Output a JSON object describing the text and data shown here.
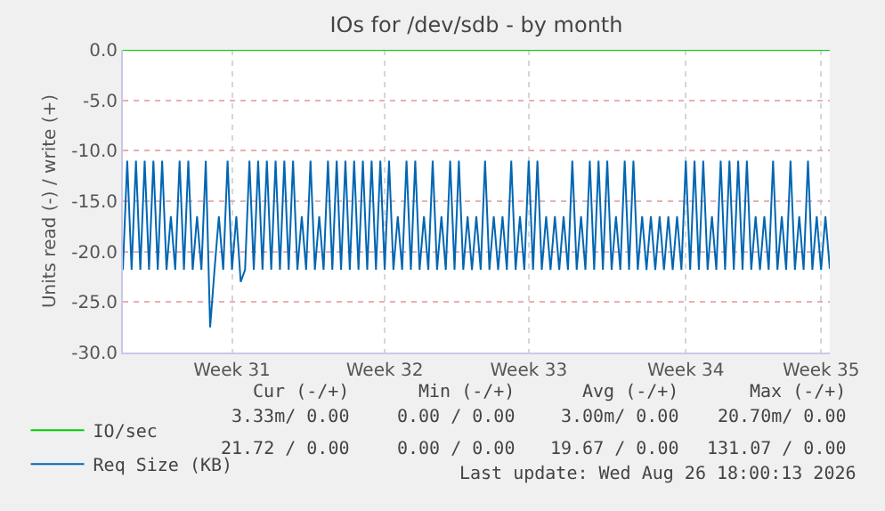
{
  "chart_data": {
    "type": "line",
    "title": "IOs for /dev/sdb - by month",
    "ylabel": "Units read (-) / write (+)",
    "categories": [
      null,
      null,
      null,
      null,
      null,
      null,
      null,
      null,
      null,
      null,
      null,
      null,
      null,
      null,
      null,
      null,
      null,
      null,
      null,
      null,
      null,
      null,
      null,
      null,
      null,
      "Week 31",
      null,
      null,
      null,
      null,
      null,
      null,
      null,
      null,
      null,
      null,
      null,
      null,
      null,
      null,
      null,
      null,
      null,
      null,
      null,
      null,
      null,
      null,
      null,
      null,
      null,
      null,
      null,
      null,
      null,
      null,
      null,
      null,
      null,
      null,
      "Week 32",
      null,
      null,
      null,
      null,
      null,
      null,
      null,
      null,
      null,
      null,
      null,
      null,
      null,
      null,
      null,
      null,
      null,
      null,
      null,
      null,
      null,
      null,
      null,
      null,
      null,
      null,
      null,
      null,
      null,
      null,
      null,
      null,
      "Week 33",
      null,
      null,
      null,
      null,
      null,
      null,
      null,
      null,
      null,
      null,
      null,
      null,
      null,
      null,
      null,
      null,
      null,
      null,
      null,
      null,
      null,
      null,
      null,
      null,
      null,
      null,
      null,
      null,
      null,
      null,
      null,
      null,
      null,
      null,
      null,
      "Week 34",
      null,
      null,
      null,
      null,
      null,
      null,
      null,
      null,
      null,
      null,
      null,
      null,
      null,
      null,
      null,
      null,
      null,
      null,
      null,
      null,
      null,
      null,
      null,
      null,
      null,
      null,
      null,
      null,
      null,
      null,
      "Week 35",
      null,
      null
    ],
    "ylim": [
      -30,
      0
    ],
    "yticks": [
      {
        "value": -30,
        "label": "-30.0"
      },
      {
        "value": -25,
        "label": "-25.0"
      },
      {
        "value": -20,
        "label": "-20.0"
      },
      {
        "value": -15,
        "label": "-15.0"
      },
      {
        "value": -10,
        "label": "-10.0"
      },
      {
        "value": -5,
        "label": "-5.0"
      },
      {
        "value": 0,
        "label": "0.0"
      }
    ],
    "grid": true,
    "legend": "bottom left",
    "marker": "none",
    "line_style": "solid",
    "series": [
      {
        "name": "IO/sec",
        "color": "#00cc00",
        "values": [
          0,
          0,
          0,
          0,
          0,
          0,
          0,
          0,
          0,
          0,
          0,
          0,
          0,
          0,
          0,
          0,
          0,
          0,
          0,
          0,
          0,
          0,
          0,
          0,
          0,
          0,
          0,
          0,
          0,
          0,
          0,
          0,
          0,
          0,
          0,
          0,
          0,
          0,
          0,
          0,
          0,
          0,
          0,
          0,
          0,
          0,
          0,
          0,
          0,
          0,
          0,
          0,
          0,
          0,
          0,
          0,
          0,
          0,
          0,
          0,
          0,
          0,
          0,
          0,
          0,
          0,
          0,
          0,
          0,
          0,
          0,
          0,
          0,
          0,
          0,
          0,
          0,
          0,
          0,
          0,
          0,
          0,
          0,
          0,
          0,
          0,
          0,
          0,
          0,
          0,
          0,
          0,
          0,
          0,
          0,
          0,
          0,
          0,
          0,
          0,
          0,
          0,
          0,
          0,
          0,
          0,
          0,
          0,
          0,
          0,
          0,
          0,
          0,
          0,
          0,
          0,
          0,
          0,
          0,
          0,
          0,
          0,
          0,
          0,
          0,
          0,
          0,
          0,
          0,
          0,
          0,
          0,
          0,
          0,
          0,
          0,
          0,
          0,
          0,
          0,
          0,
          0,
          0,
          0,
          0,
          0,
          0,
          0,
          0,
          0,
          0,
          0,
          0,
          0,
          0,
          0,
          0,
          0,
          0,
          0,
          0,
          0,
          0
        ]
      },
      {
        "name": "Req Size (KB)",
        "color": "#0066b3",
        "values": [
          -21.8,
          -11,
          -21.8,
          -11,
          -21.8,
          -11,
          -21.8,
          -11,
          -21.8,
          -11,
          -21.8,
          -16.5,
          -21.8,
          -11,
          -21.8,
          -11,
          -21.8,
          -16.5,
          -21.8,
          -11,
          -27.5,
          -21.8,
          -16.5,
          -21.8,
          -11,
          -21.8,
          -16.5,
          -23,
          -21.8,
          -11,
          -21.8,
          -11,
          -21.8,
          -11,
          -21.8,
          -11,
          -21.8,
          -11,
          -21.8,
          -11,
          -21.8,
          -16.5,
          -21.8,
          -11,
          -21.8,
          -16.5,
          -21.8,
          -11,
          -21.8,
          -11,
          -21.8,
          -11,
          -21.8,
          -11,
          -21.8,
          -11,
          -21.8,
          -11,
          -21.8,
          -11,
          -21.8,
          -11,
          -21.8,
          -16.5,
          -21.8,
          -11,
          -21.8,
          -11,
          -21.8,
          -16.5,
          -21.8,
          -11,
          -21.8,
          -16.5,
          -21.8,
          -11,
          -21.8,
          -11,
          -21.8,
          -16.5,
          -21.8,
          -16.5,
          -21.8,
          -11,
          -21.8,
          -16.5,
          -21.8,
          -16.5,
          -21.8,
          -11,
          -21.8,
          -16.5,
          -21.8,
          -11,
          -21.8,
          -11,
          -21.8,
          -16.5,
          -21.8,
          -16.5,
          -21.8,
          -16.5,
          -21.8,
          -11,
          -21.8,
          -16.5,
          -21.8,
          -11,
          -21.8,
          -11,
          -21.8,
          -11,
          -21.8,
          -16.5,
          -21.8,
          -11,
          -21.8,
          -11,
          -21.8,
          -16.5,
          -21.8,
          -16.5,
          -21.8,
          -16.5,
          -21.8,
          -16.5,
          -21.8,
          -16.5,
          -21.8,
          -11,
          -21.8,
          -11,
          -21.8,
          -11,
          -21.8,
          -16.5,
          -21.8,
          -11,
          -21.8,
          -11,
          -21.8,
          -11,
          -21.8,
          -11,
          -21.8,
          -16.5,
          -21.8,
          -16.5,
          -21.8,
          -11,
          -21.8,
          -16.5,
          -21.8,
          -11,
          -21.8,
          -16.5,
          -21.8,
          -11,
          -21.8,
          -16.5,
          -21.8,
          -16.5,
          -21.7
        ]
      }
    ],
    "annotations": [
      "Cur (-/+)",
      "Min (-/+)",
      "Avg (-/+)",
      "Max (-/+)",
      "3.33m/ 0.00",
      "0.00 / 0.00",
      "3.00m/ 0.00",
      "20.70m/ 0.00",
      "21.72 / 0.00",
      "0.00 / 0.00",
      "19.67 / 0.00",
      "131.07 / 0.00",
      "Last update: Wed Aug 26 18:00:13 2026"
    ]
  }
}
